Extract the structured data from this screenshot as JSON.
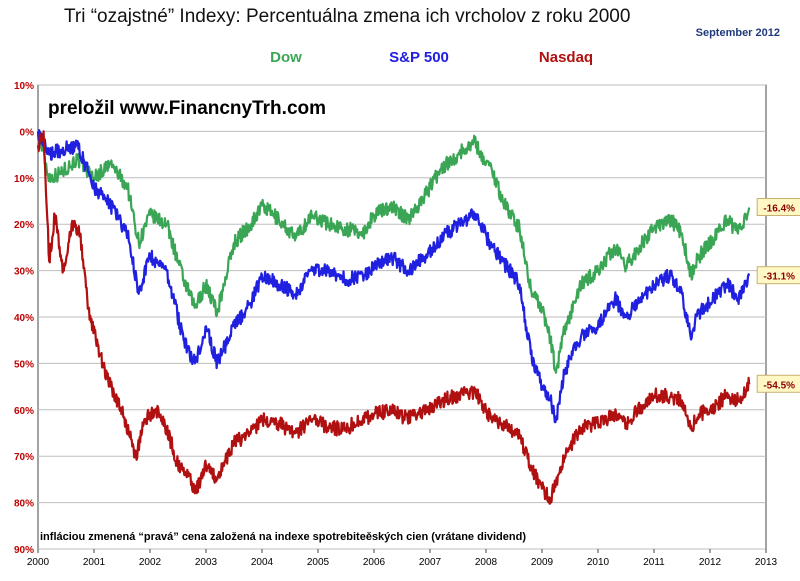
{
  "chart_data": {
    "type": "line",
    "title": "Tri “ozajstné” Indexy: Percentuálna zmena ich vrcholov z roku 2000",
    "date_label": "September 2012",
    "watermark": "preložil www.FinancnyTrh.com",
    "footnote": "infláciou zmenená “pravá” cena založená na indexe spotrebiteěských cien (vrátane dividend)",
    "y_tick_labels": [
      "10%",
      "0%",
      "10%",
      "20%",
      "30%",
      "40%",
      "50%",
      "60%",
      "70%",
      "80%",
      "90%"
    ],
    "y_tick_values": [
      10,
      0,
      -10,
      -20,
      -30,
      -40,
      -50,
      -60,
      -70,
      -80,
      -90
    ],
    "x_tick_labels": [
      "2000",
      "2001",
      "2002",
      "2003",
      "2004",
      "2005",
      "2006",
      "2007",
      "2008",
      "2009",
      "2010",
      "2011",
      "2012",
      "2013"
    ],
    "x_tick_values": [
      2000,
      2001,
      2002,
      2003,
      2004,
      2005,
      2006,
      2007,
      2008,
      2009,
      2010,
      2011,
      2012,
      2013
    ],
    "xlim": [
      2000,
      2013
    ],
    "ylim": [
      -90,
      10
    ],
    "grid": true,
    "legend_position": "top-center",
    "series": [
      {
        "name": "Dow",
        "color": "#3aa655",
        "end_label": "-16.4%",
        "x": [
          2000.0,
          2000.2,
          2000.4,
          2000.7,
          2001.0,
          2001.3,
          2001.6,
          2001.8,
          2002.0,
          2002.3,
          2002.6,
          2002.8,
          2003.0,
          2003.2,
          2003.5,
          2003.8,
          2004.0,
          2004.3,
          2004.6,
          2004.9,
          2005.2,
          2005.5,
          2005.8,
          2006.0,
          2006.3,
          2006.6,
          2006.9,
          2007.2,
          2007.5,
          2007.8,
          2007.9,
          2008.1,
          2008.3,
          2008.6,
          2008.8,
          2009.0,
          2009.15,
          2009.25,
          2009.4,
          2009.7,
          2010.0,
          2010.3,
          2010.5,
          2010.8,
          2011.0,
          2011.3,
          2011.5,
          2011.65,
          2011.8,
          2012.0,
          2012.3,
          2012.5,
          2012.7
        ],
        "values": [
          0,
          -10,
          -9,
          -6,
          -10,
          -7,
          -12,
          -24,
          -18,
          -20,
          -32,
          -38,
          -33,
          -39,
          -24,
          -20,
          -16,
          -19,
          -23,
          -18,
          -20,
          -21,
          -22,
          -18,
          -16,
          -19,
          -14,
          -8,
          -5,
          -2,
          -5,
          -8,
          -15,
          -21,
          -34,
          -38,
          -45,
          -52,
          -43,
          -33,
          -30,
          -25,
          -29,
          -24,
          -21,
          -19,
          -22,
          -31,
          -27,
          -24,
          -19,
          -22,
          -16.4
        ]
      },
      {
        "name": "S&P 500",
        "color": "#2020e0",
        "end_label": "-31.1%",
        "x": [
          2000.0,
          2000.2,
          2000.4,
          2000.7,
          2001.0,
          2001.3,
          2001.6,
          2001.8,
          2002.0,
          2002.3,
          2002.6,
          2002.8,
          2003.0,
          2003.2,
          2003.5,
          2003.8,
          2004.0,
          2004.3,
          2004.6,
          2004.9,
          2005.2,
          2005.5,
          2005.8,
          2006.0,
          2006.3,
          2006.6,
          2006.9,
          2007.2,
          2007.5,
          2007.8,
          2007.9,
          2008.1,
          2008.3,
          2008.6,
          2008.8,
          2009.0,
          2009.15,
          2009.25,
          2009.4,
          2009.7,
          2010.0,
          2010.3,
          2010.5,
          2010.8,
          2011.0,
          2011.3,
          2011.5,
          2011.65,
          2011.8,
          2012.0,
          2012.3,
          2012.5,
          2012.7
        ],
        "values": [
          0,
          -5,
          -4,
          -3,
          -12,
          -16,
          -22,
          -35,
          -27,
          -30,
          -45,
          -50,
          -42,
          -50,
          -42,
          -37,
          -31,
          -33,
          -35,
          -30,
          -30,
          -32,
          -31,
          -29,
          -27,
          -30,
          -27,
          -23,
          -20,
          -18,
          -20,
          -25,
          -28,
          -33,
          -48,
          -55,
          -58,
          -62,
          -52,
          -44,
          -42,
          -36,
          -40,
          -36,
          -33,
          -31,
          -35,
          -44,
          -39,
          -37,
          -33,
          -36,
          -31.1
        ]
      },
      {
        "name": "Nasdaq",
        "color": "#b01010",
        "end_label": "-54.5%",
        "x": [
          2000.0,
          2000.1,
          2000.2,
          2000.3,
          2000.45,
          2000.6,
          2000.75,
          2000.9,
          2001.1,
          2001.3,
          2001.5,
          2001.75,
          2001.9,
          2002.1,
          2002.3,
          2002.5,
          2002.7,
          2002.8,
          2003.0,
          2003.2,
          2003.5,
          2003.8,
          2004.0,
          2004.3,
          2004.6,
          2004.9,
          2005.2,
          2005.5,
          2005.8,
          2006.0,
          2006.3,
          2006.6,
          2006.9,
          2007.2,
          2007.5,
          2007.8,
          2007.9,
          2008.1,
          2008.3,
          2008.6,
          2008.8,
          2009.0,
          2009.15,
          2009.25,
          2009.4,
          2009.7,
          2010.0,
          2010.3,
          2010.5,
          2010.8,
          2011.0,
          2011.3,
          2011.5,
          2011.65,
          2011.8,
          2012.0,
          2012.3,
          2012.5,
          2012.7
        ],
        "values": [
          -3,
          0,
          -28,
          -18,
          -30,
          -20,
          -22,
          -38,
          -48,
          -55,
          -60,
          -70,
          -62,
          -60,
          -64,
          -72,
          -74,
          -78,
          -72,
          -75,
          -67,
          -65,
          -62,
          -63,
          -65,
          -62,
          -64,
          -64,
          -62,
          -61,
          -60,
          -62,
          -60,
          -58,
          -57,
          -56,
          -58,
          -62,
          -63,
          -66,
          -72,
          -77,
          -79,
          -76,
          -70,
          -64,
          -63,
          -61,
          -63,
          -59,
          -57,
          -57,
          -58,
          -64,
          -61,
          -60,
          -57,
          -58,
          -54.5
        ]
      }
    ]
  }
}
